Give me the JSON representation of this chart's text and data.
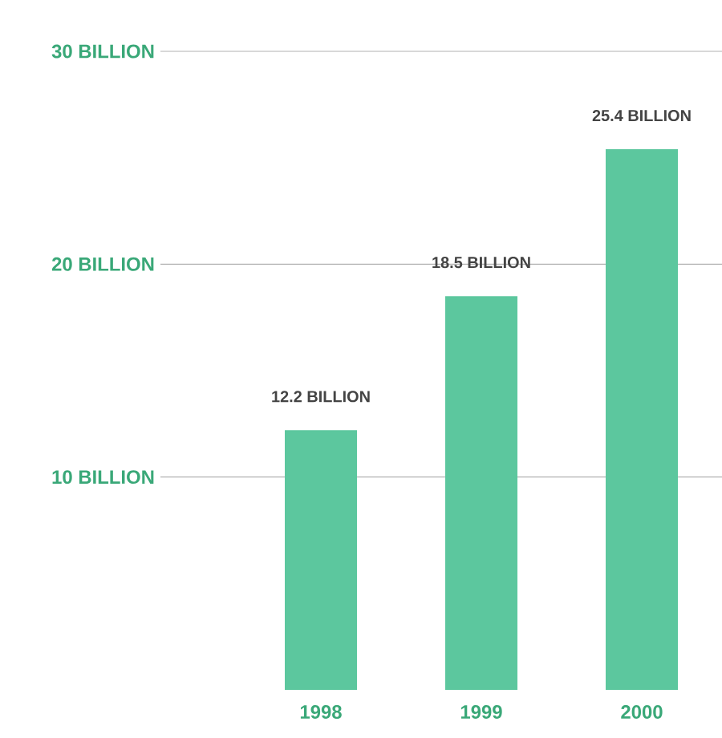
{
  "chart_data": {
    "type": "bar",
    "categories": [
      "1998",
      "1999",
      "2000"
    ],
    "values": [
      12.2,
      18.5,
      25.4
    ],
    "value_labels": [
      "12.2 BILLION",
      "18.5 BILLION",
      "25.4 BILLION"
    ],
    "color": "#5cc79e",
    "ylim": [
      0,
      30
    ],
    "yticks": [
      {
        "value": 10,
        "label": "10 BILLION"
      },
      {
        "value": 20,
        "label": "20 BILLION"
      },
      {
        "value": 30,
        "label": "30 BILLION"
      }
    ],
    "grid": "y"
  }
}
